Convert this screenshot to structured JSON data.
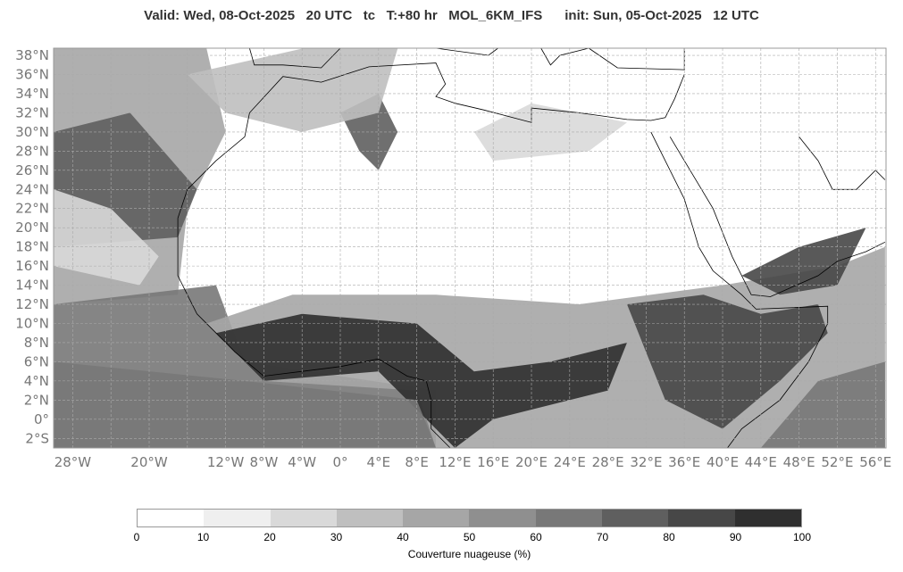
{
  "header": {
    "title": "Valid: Wed, 08-Oct-2025   20 UTC   tc   T:+80 hr   MOL_6KM_IFS      init: Sun, 05-Oct-2025   12 UTC"
  },
  "map": {
    "lat_labels": [
      "38°N",
      "36°N",
      "34°N",
      "32°N",
      "30°N",
      "28°N",
      "26°N",
      "24°N",
      "22°N",
      "20°N",
      "18°N",
      "16°N",
      "14°N",
      "12°N",
      "10°N",
      "8°N",
      "6°N",
      "4°N",
      "2°N",
      "0°",
      "2°S"
    ],
    "lat_values": [
      38,
      36,
      34,
      32,
      30,
      28,
      26,
      24,
      22,
      20,
      18,
      16,
      14,
      12,
      10,
      8,
      6,
      4,
      2,
      0,
      -2
    ],
    "lon_labels": [
      "28°W",
      "20°W",
      "12°W",
      "8°W",
      "4°W",
      "0°",
      "4°E",
      "8°E",
      "12°E",
      "16°E",
      "20°E",
      "24°E",
      "28°E",
      "32°E",
      "36°E",
      "40°E",
      "44°E",
      "48°E",
      "52°E",
      "56°E"
    ],
    "lon_values": [
      -28,
      -20,
      -12,
      -8,
      -4,
      0,
      4,
      8,
      12,
      16,
      20,
      24,
      28,
      32,
      36,
      40,
      44,
      48,
      52,
      56
    ],
    "extent": {
      "lon": [
        -30,
        57.1
      ],
      "lat": [
        -3,
        38.75
      ]
    }
  },
  "colorbar": {
    "label": "Couverture nuageuse (%)",
    "ticks": [
      "0",
      "10",
      "20",
      "30",
      "40",
      "50",
      "60",
      "70",
      "80",
      "90",
      "100"
    ],
    "colors": [
      "#ffffff",
      "#efefef",
      "#d9d9d9",
      "#bfbfbf",
      "#a6a6a6",
      "#8f8f8f",
      "#787878",
      "#5f5f5f",
      "#474747",
      "#2f2f2f"
    ]
  }
}
